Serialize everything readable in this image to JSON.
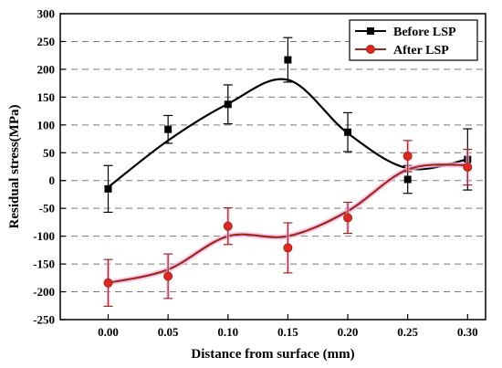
{
  "chart_data": {
    "type": "line",
    "xlabel": "Distance from surface (mm)",
    "ylabel": "Residual stress(MPa)",
    "xlim": [
      -0.04,
      0.315
    ],
    "ylim": [
      -250,
      300
    ],
    "x_ticks": [
      "0.00",
      "0.05",
      "0.10",
      "0.15",
      "0.20",
      "0.25",
      "0.30"
    ],
    "y_ticks": [
      "-250",
      "-200",
      "-150",
      "-100",
      "-50",
      "0",
      "50",
      "100",
      "150",
      "200",
      "250",
      "300"
    ],
    "grid": "horizontal dashed",
    "legend_position": "top-right",
    "series": [
      {
        "name": "Before LSP",
        "color": "#000000",
        "marker": "square",
        "x": [
          0.0,
          0.05,
          0.1,
          0.15,
          0.2,
          0.25,
          0.3
        ],
        "y": [
          -15,
          92,
          137,
          217,
          87,
          2,
          38
        ],
        "error": [
          42,
          25,
          35,
          40,
          35,
          25,
          55
        ],
        "fit_y": [
          -12,
          72,
          138,
          181,
          85,
          22,
          38
        ]
      },
      {
        "name": "After LSP",
        "color": "#a0281a",
        "marker": "circle",
        "x": [
          0.0,
          0.05,
          0.1,
          0.15,
          0.2,
          0.25,
          0.3
        ],
        "y": [
          -184,
          -172,
          -82,
          -121,
          -67,
          44,
          24
        ],
        "error": [
          42,
          40,
          33,
          45,
          28,
          28,
          32
        ],
        "fit_y": [
          -184,
          -160,
          -100,
          -100,
          -55,
          20,
          28
        ]
      }
    ]
  }
}
